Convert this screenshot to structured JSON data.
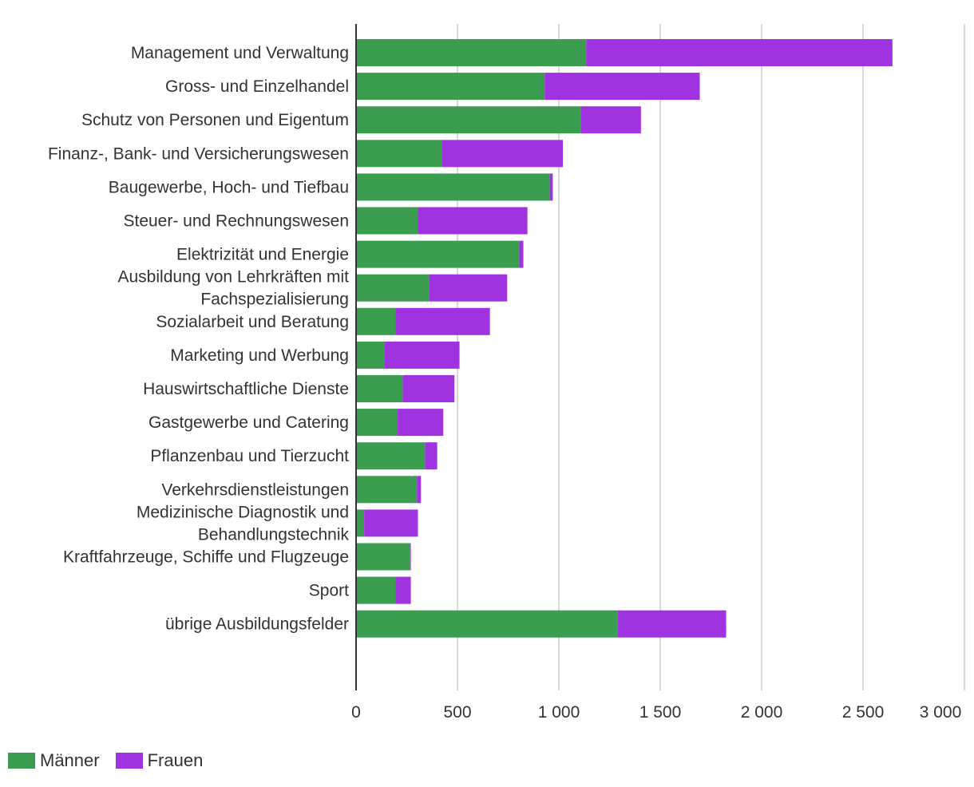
{
  "chart_data": {
    "type": "bar",
    "orientation": "horizontal",
    "stacked": true,
    "categories": [
      [
        "Management und Verwaltung"
      ],
      [
        "Gross- und Einzelhandel"
      ],
      [
        "Schutz von Personen und Eigentum"
      ],
      [
        "Finanz-, Bank- und Versicherungswesen"
      ],
      [
        "Baugewerbe, Hoch- und Tiefbau"
      ],
      [
        "Steuer- und Rechnungswesen"
      ],
      [
        "Elektrizität und Energie"
      ],
      [
        "Ausbildung von Lehrkräften mit",
        "Fachspezialisierung"
      ],
      [
        "Sozialarbeit und Beratung"
      ],
      [
        "Marketing und Werbung"
      ],
      [
        "Hauswirtschaftliche Dienste"
      ],
      [
        "Gastgewerbe und Catering"
      ],
      [
        "Pflanzenbau und Tierzucht"
      ],
      [
        "Verkehrsdienstleistungen"
      ],
      [
        "Medizinische Diagnostik und",
        "Behandlungstechnik"
      ],
      [
        "Kraftfahrzeuge, Schiffe und Flugzeuge"
      ],
      [
        "Sport"
      ],
      [
        "übrige Ausbildungsfelder"
      ]
    ],
    "series": [
      {
        "name": "Männer",
        "color": "#3a9d4f",
        "values": [
          1135,
          930,
          1110,
          425,
          955,
          305,
          805,
          360,
          195,
          140,
          230,
          205,
          340,
          300,
          40,
          265,
          195,
          1290
        ]
      },
      {
        "name": "Frauen",
        "color": "#a033e0",
        "values": [
          1510,
          765,
          295,
          595,
          15,
          540,
          20,
          385,
          465,
          370,
          255,
          225,
          60,
          20,
          265,
          5,
          75,
          535
        ]
      }
    ],
    "x_ticks": [
      "0",
      "500",
      "1 000",
      "1 500",
      "2 000",
      "2 500",
      "3 000"
    ],
    "x_tick_values": [
      0,
      500,
      1000,
      1500,
      2000,
      2500,
      3000
    ],
    "xlim": [
      0,
      3000
    ],
    "grid": "vertical",
    "legend_position": "bottom-left"
  }
}
